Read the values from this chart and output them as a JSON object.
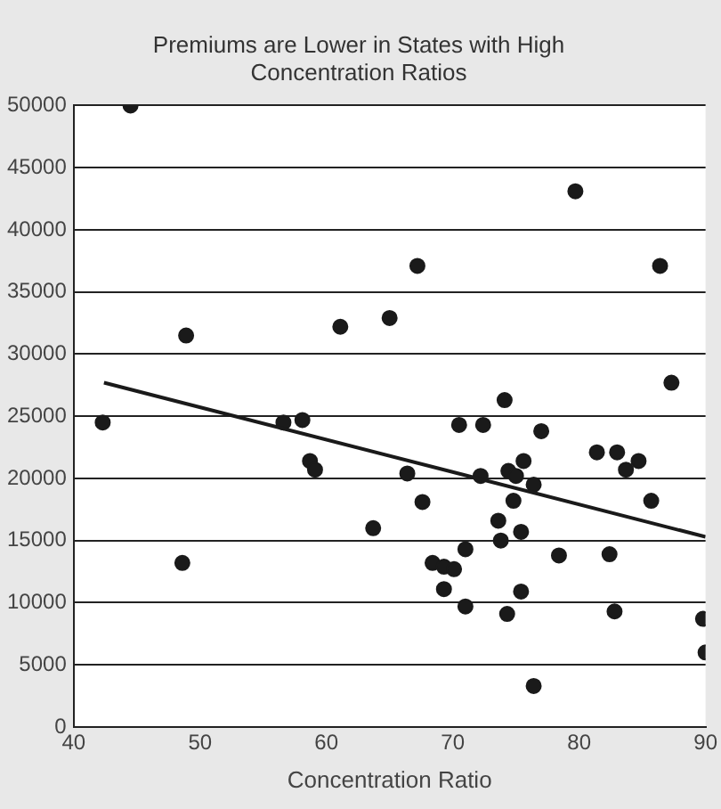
{
  "chart_data": {
    "type": "scatter",
    "title": "Premiums are Lower in States with High Concentration Ratios",
    "xlabel": "Concentration Ratio",
    "xlim": [
      40,
      90
    ],
    "xticks": [
      40,
      50,
      60,
      70,
      80,
      90
    ],
    "ylim": [
      0,
      50000
    ],
    "yticks": [
      0,
      5000,
      10000,
      15000,
      20000,
      25000,
      30000,
      35000,
      40000,
      45000,
      50000
    ],
    "grid": "y",
    "legend": false,
    "marker": "circle",
    "series": [
      {
        "type": "scatter",
        "color": "#1a1a1a",
        "x": [
          44.5,
          48.9,
          61.1,
          42.3,
          79.7,
          67.2,
          86.4,
          65.0,
          87.3,
          74.1,
          70.5,
          72.4,
          77.0,
          56.6,
          58.1,
          58.7,
          59.1,
          63.3,
          63.7,
          48.6,
          66.4,
          67.6,
          72.2,
          74.4,
          75.0,
          75.6,
          76.4,
          74.8,
          73.6,
          73.8,
          75.4,
          71.0,
          68.4,
          69.3,
          70.1,
          69.3,
          71.0,
          75.4,
          74.3,
          78.4,
          82.4,
          82.8,
          76.4,
          81.4,
          83.0,
          83.7,
          84.7,
          85.7,
          89.8,
          90
        ],
        "values": [
          50000,
          31500,
          32200,
          24500,
          43100,
          37100,
          37100,
          32900,
          27700,
          26300,
          24300,
          24300,
          23800,
          24500,
          24700,
          21400,
          20700,
          null,
          16000,
          13200,
          20400,
          18100,
          20200,
          20600,
          20200,
          21400,
          19500,
          18200,
          16600,
          15000,
          15700,
          14300,
          13200,
          12900,
          12700,
          11100,
          9700,
          10900,
          9100,
          13800,
          13900,
          9300,
          3300,
          22100,
          22100,
          20700,
          21400,
          18200,
          8700,
          6000
        ]
      },
      {
        "type": "line",
        "color": "#1a1a1a",
        "marker": "none",
        "x": [
          42.4,
          90
        ],
        "values": [
          27700,
          15300
        ]
      }
    ]
  }
}
